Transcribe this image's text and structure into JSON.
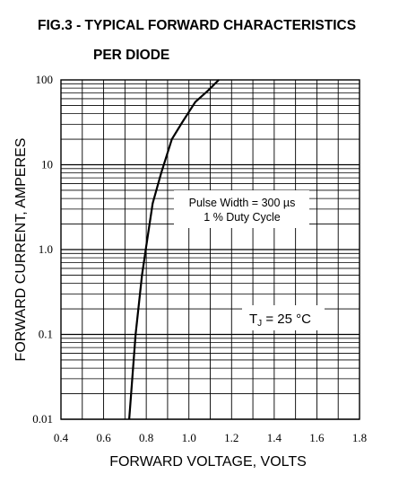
{
  "figure": {
    "title_line1": "FIG.3 - TYPICAL FORWARD CHARACTERISTICS",
    "title_line2": "PER DIODE"
  },
  "chart_data": {
    "type": "line",
    "title": "FIG.3 - TYPICAL FORWARD CHARACTERISTICS PER DIODE",
    "xlabel": "FORWARD VOLTAGE, VOLTS",
    "ylabel": "FORWARD CURRENT, AMPERES",
    "xlim": [
      0.4,
      1.8
    ],
    "ylim": [
      0.01,
      100
    ],
    "yscale": "log",
    "grid": true,
    "x_ticks": [
      "0.4",
      "0.6",
      "0.8",
      "1.0",
      "1.2",
      "1.4",
      "1.6",
      "1.8"
    ],
    "y_ticks": [
      "100",
      "10",
      "1.0",
      "0.1",
      "0.01"
    ],
    "series": [
      {
        "x": [
          0.72,
          0.75,
          0.78,
          0.8,
          0.83,
          0.87,
          0.92,
          0.97,
          1.03,
          1.09,
          1.14
        ],
        "y": [
          0.01,
          0.1,
          0.5,
          1.1,
          3.5,
          8,
          20,
          32,
          55,
          75,
          100
        ],
        "color": "#000000"
      }
    ],
    "annotations": [
      {
        "line1": "Pulse Width = 300 µs",
        "line2": "1 % Duty Cycle"
      },
      {
        "line1": "TJ = 25 °C"
      }
    ]
  }
}
